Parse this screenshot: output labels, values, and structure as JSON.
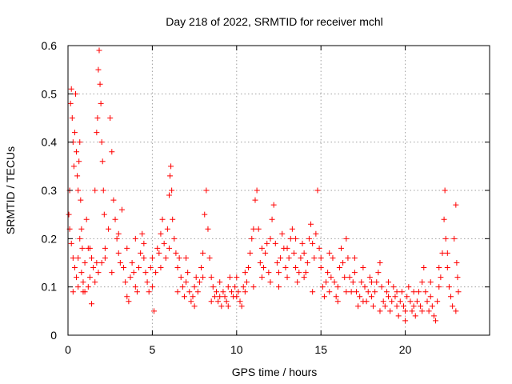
{
  "chart_data": {
    "type": "scatter",
    "title": "Day 218 of 2022, SRMTID for receiver mchl",
    "xlabel": "GPS time / hours",
    "ylabel": "SRMTID / TECUs",
    "xlim": [
      0,
      25
    ],
    "ylim": [
      0,
      0.6
    ],
    "xticks": [
      0,
      5,
      10,
      15,
      20
    ],
    "xtick_labels": [
      "0",
      "5",
      "10",
      "15",
      "20"
    ],
    "yticks": [
      0,
      0.1,
      0.2,
      0.3,
      0.4,
      0.5,
      0.6
    ],
    "ytick_labels": [
      "0",
      "0.1",
      "0.2",
      "0.3",
      "0.4",
      "0.5",
      "0.6"
    ],
    "grid": true,
    "marker": "plus",
    "color": "#ff0000",
    "series": [
      {
        "name": "mchl",
        "points": [
          [
            0.05,
            0.25
          ],
          [
            0.1,
            0.3
          ],
          [
            0.15,
            0.48
          ],
          [
            0.2,
            0.51
          ],
          [
            0.25,
            0.45
          ],
          [
            0.3,
            0.4
          ],
          [
            0.35,
            0.35
          ],
          [
            0.4,
            0.42
          ],
          [
            0.45,
            0.5
          ],
          [
            0.5,
            0.38
          ],
          [
            0.55,
            0.33
          ],
          [
            0.6,
            0.3
          ],
          [
            0.65,
            0.36
          ],
          [
            0.7,
            0.4
          ],
          [
            0.75,
            0.28
          ],
          [
            0.8,
            0.22
          ],
          [
            0.85,
            0.18
          ],
          [
            0.1,
            0.22
          ],
          [
            0.2,
            0.19
          ],
          [
            0.3,
            0.16
          ],
          [
            0.4,
            0.14
          ],
          [
            0.5,
            0.12
          ],
          [
            0.6,
            0.16
          ],
          [
            0.7,
            0.2
          ],
          [
            0.8,
            0.13
          ],
          [
            0.9,
            0.11
          ],
          [
            1.0,
            0.15
          ],
          [
            1.1,
            0.24
          ],
          [
            1.2,
            0.18
          ],
          [
            1.3,
            0.12
          ],
          [
            1.4,
            0.16
          ],
          [
            1.5,
            0.14
          ],
          [
            1.6,
            0.3
          ],
          [
            1.7,
            0.42
          ],
          [
            1.75,
            0.45
          ],
          [
            1.8,
            0.55
          ],
          [
            1.85,
            0.59
          ],
          [
            1.9,
            0.52
          ],
          [
            1.95,
            0.48
          ],
          [
            2.0,
            0.4
          ],
          [
            2.05,
            0.36
          ],
          [
            2.1,
            0.3
          ],
          [
            2.15,
            0.25
          ],
          [
            1.0,
            0.09
          ],
          [
            1.2,
            0.1
          ],
          [
            1.4,
            0.065
          ],
          [
            1.6,
            0.11
          ],
          [
            1.8,
            0.13
          ],
          [
            2.0,
            0.15
          ],
          [
            2.2,
            0.18
          ],
          [
            2.4,
            0.22
          ],
          [
            2.5,
            0.45
          ],
          [
            2.6,
            0.38
          ],
          [
            2.7,
            0.28
          ],
          [
            2.8,
            0.24
          ],
          [
            2.9,
            0.2
          ],
          [
            3.0,
            0.17
          ],
          [
            3.1,
            0.15
          ],
          [
            3.2,
            0.26
          ],
          [
            3.3,
            0.14
          ],
          [
            3.4,
            0.11
          ],
          [
            3.5,
            0.08
          ],
          [
            3.6,
            0.07
          ],
          [
            3.7,
            0.12
          ],
          [
            3.8,
            0.15
          ],
          [
            3.9,
            0.13
          ],
          [
            4.0,
            0.1
          ],
          [
            4.1,
            0.09
          ],
          [
            4.2,
            0.14
          ],
          [
            4.3,
            0.17
          ],
          [
            4.4,
            0.21
          ],
          [
            4.5,
            0.19
          ],
          [
            4.6,
            0.13
          ],
          [
            4.7,
            0.11
          ],
          [
            4.8,
            0.09
          ],
          [
            4.9,
            0.14
          ],
          [
            5.0,
            0.16
          ],
          [
            5.1,
            0.05
          ],
          [
            5.2,
            0.13
          ],
          [
            5.3,
            0.18
          ],
          [
            5.4,
            0.17
          ],
          [
            5.5,
            0.21
          ],
          [
            5.6,
            0.24
          ],
          [
            5.7,
            0.19
          ],
          [
            5.8,
            0.16
          ],
          [
            5.9,
            0.22
          ],
          [
            6.0,
            0.29
          ],
          [
            6.05,
            0.33
          ],
          [
            6.1,
            0.35
          ],
          [
            6.15,
            0.3
          ],
          [
            6.2,
            0.24
          ],
          [
            6.3,
            0.2
          ],
          [
            6.4,
            0.17
          ],
          [
            6.5,
            0.14
          ],
          [
            6.6,
            0.16
          ],
          [
            6.7,
            0.12
          ],
          [
            6.8,
            0.1
          ],
          [
            6.9,
            0.08
          ],
          [
            7.0,
            0.11
          ],
          [
            7.1,
            0.13
          ],
          [
            7.2,
            0.09
          ],
          [
            7.3,
            0.07
          ],
          [
            7.4,
            0.08
          ],
          [
            7.5,
            0.1
          ],
          [
            7.6,
            0.12
          ],
          [
            7.7,
            0.09
          ],
          [
            7.8,
            0.11
          ],
          [
            7.9,
            0.14
          ],
          [
            8.0,
            0.17
          ],
          [
            8.1,
            0.25
          ],
          [
            8.2,
            0.3
          ],
          [
            8.3,
            0.22
          ],
          [
            8.4,
            0.16
          ],
          [
            8.5,
            0.12
          ],
          [
            8.6,
            0.1
          ],
          [
            8.7,
            0.08
          ],
          [
            8.8,
            0.09
          ],
          [
            8.9,
            0.07
          ],
          [
            9.0,
            0.08
          ],
          [
            9.1,
            0.06
          ],
          [
            9.2,
            0.09
          ],
          [
            9.3,
            0.08
          ],
          [
            9.4,
            0.07
          ],
          [
            9.5,
            0.1
          ],
          [
            9.6,
            0.12
          ],
          [
            9.7,
            0.09
          ],
          [
            9.8,
            0.08
          ],
          [
            9.9,
            0.1
          ],
          [
            10.0,
            0.12
          ],
          [
            10.1,
            0.09
          ],
          [
            10.2,
            0.07
          ],
          [
            10.3,
            0.06
          ],
          [
            10.4,
            0.1
          ],
          [
            10.5,
            0.13
          ],
          [
            10.6,
            0.11
          ],
          [
            10.7,
            0.14
          ],
          [
            10.8,
            0.17
          ],
          [
            10.9,
            0.2
          ],
          [
            11.0,
            0.22
          ],
          [
            11.1,
            0.28
          ],
          [
            11.2,
            0.3
          ],
          [
            11.3,
            0.22
          ],
          [
            11.4,
            0.15
          ],
          [
            11.5,
            0.12
          ],
          [
            11.6,
            0.14
          ],
          [
            11.7,
            0.17
          ],
          [
            11.8,
            0.19
          ],
          [
            11.9,
            0.13
          ],
          [
            12.0,
            0.11
          ],
          [
            12.1,
            0.24
          ],
          [
            12.2,
            0.27
          ],
          [
            12.3,
            0.19
          ],
          [
            12.4,
            0.15
          ],
          [
            12.5,
            0.13
          ],
          [
            12.6,
            0.16
          ],
          [
            12.7,
            0.21
          ],
          [
            12.8,
            0.18
          ],
          [
            12.9,
            0.14
          ],
          [
            13.0,
            0.12
          ],
          [
            13.1,
            0.16
          ],
          [
            13.2,
            0.2
          ],
          [
            13.3,
            0.22
          ],
          [
            13.4,
            0.17
          ],
          [
            13.5,
            0.14
          ],
          [
            13.6,
            0.11
          ],
          [
            13.7,
            0.13
          ],
          [
            13.8,
            0.16
          ],
          [
            13.9,
            0.19
          ],
          [
            14.0,
            0.17
          ],
          [
            14.1,
            0.13
          ],
          [
            14.2,
            0.15
          ],
          [
            14.3,
            0.2
          ],
          [
            14.4,
            0.23
          ],
          [
            14.5,
            0.19
          ],
          [
            14.6,
            0.16
          ],
          [
            14.7,
            0.21
          ],
          [
            14.8,
            0.3
          ],
          [
            14.9,
            0.18
          ],
          [
            15.0,
            0.14
          ],
          [
            15.1,
            0.1
          ],
          [
            15.2,
            0.08
          ],
          [
            15.3,
            0.11
          ],
          [
            15.4,
            0.13
          ],
          [
            15.5,
            0.09
          ],
          [
            15.6,
            0.12
          ],
          [
            15.7,
            0.16
          ],
          [
            15.8,
            0.11
          ],
          [
            15.9,
            0.08
          ],
          [
            16.0,
            0.1
          ],
          [
            16.1,
            0.14
          ],
          [
            16.2,
            0.18
          ],
          [
            16.3,
            0.15
          ],
          [
            16.4,
            0.12
          ],
          [
            16.5,
            0.2
          ],
          [
            16.6,
            0.16
          ],
          [
            16.7,
            0.12
          ],
          [
            16.8,
            0.09
          ],
          [
            16.9,
            0.11
          ],
          [
            17.0,
            0.13
          ],
          [
            17.1,
            0.09
          ],
          [
            17.2,
            0.06
          ],
          [
            17.3,
            0.08
          ],
          [
            17.4,
            0.11
          ],
          [
            17.5,
            0.14
          ],
          [
            17.6,
            0.1
          ],
          [
            17.7,
            0.07
          ],
          [
            17.8,
            0.09
          ],
          [
            17.9,
            0.12
          ],
          [
            18.0,
            0.08
          ],
          [
            18.1,
            0.06
          ],
          [
            18.2,
            0.09
          ],
          [
            18.3,
            0.11
          ],
          [
            18.4,
            0.13
          ],
          [
            18.5,
            0.15
          ],
          [
            18.6,
            0.1
          ],
          [
            18.7,
            0.07
          ],
          [
            18.8,
            0.06
          ],
          [
            18.9,
            0.09
          ],
          [
            19.0,
            0.08
          ],
          [
            19.1,
            0.05
          ],
          [
            19.2,
            0.07
          ],
          [
            19.3,
            0.1
          ],
          [
            19.4,
            0.08
          ],
          [
            19.5,
            0.06
          ],
          [
            19.6,
            0.04
          ],
          [
            19.7,
            0.07
          ],
          [
            19.8,
            0.09
          ],
          [
            19.9,
            0.06
          ],
          [
            20.0,
            0.05
          ],
          [
            20.1,
            0.08
          ],
          [
            20.2,
            0.1
          ],
          [
            20.3,
            0.07
          ],
          [
            20.4,
            0.05
          ],
          [
            20.5,
            0.06
          ],
          [
            20.6,
            0.04
          ],
          [
            20.7,
            0.07
          ],
          [
            20.8,
            0.09
          ],
          [
            20.9,
            0.06
          ],
          [
            21.0,
            0.11
          ],
          [
            21.1,
            0.14
          ],
          [
            21.2,
            0.09
          ],
          [
            21.3,
            0.07
          ],
          [
            21.4,
            0.05
          ],
          [
            21.5,
            0.08
          ],
          [
            21.6,
            0.06
          ],
          [
            21.7,
            0.04
          ],
          [
            21.8,
            0.03
          ],
          [
            21.9,
            0.07
          ],
          [
            22.0,
            0.1
          ],
          [
            22.1,
            0.12
          ],
          [
            22.2,
            0.17
          ],
          [
            22.3,
            0.24
          ],
          [
            22.35,
            0.3
          ],
          [
            22.4,
            0.2
          ],
          [
            22.5,
            0.14
          ],
          [
            22.6,
            0.1
          ],
          [
            22.7,
            0.08
          ],
          [
            22.8,
            0.06
          ],
          [
            22.9,
            0.2
          ],
          [
            23.0,
            0.27
          ],
          [
            23.05,
            0.15
          ],
          [
            23.1,
            0.12
          ],
          [
            23.15,
            0.09
          ],
          [
            0.3,
            0.09
          ],
          [
            0.6,
            0.1
          ],
          [
            0.9,
            0.09
          ],
          [
            1.3,
            0.18
          ],
          [
            1.7,
            0.15
          ],
          [
            2.2,
            0.16
          ],
          [
            2.6,
            0.13
          ],
          [
            3.0,
            0.21
          ],
          [
            3.5,
            0.18
          ],
          [
            4.0,
            0.2
          ],
          [
            4.5,
            0.16
          ],
          [
            5.0,
            0.1
          ],
          [
            5.5,
            0.14
          ],
          [
            6.0,
            0.18
          ],
          [
            6.5,
            0.09
          ],
          [
            7.0,
            0.16
          ],
          [
            7.5,
            0.06
          ],
          [
            8.0,
            0.12
          ],
          [
            8.5,
            0.07
          ],
          [
            9.0,
            0.11
          ],
          [
            9.5,
            0.06
          ],
          [
            10.0,
            0.08
          ],
          [
            10.5,
            0.09
          ],
          [
            11.0,
            0.1
          ],
          [
            11.5,
            0.18
          ],
          [
            12.0,
            0.2
          ],
          [
            12.5,
            0.1
          ],
          [
            13.0,
            0.18
          ],
          [
            13.5,
            0.2
          ],
          [
            14.0,
            0.12
          ],
          [
            14.5,
            0.09
          ],
          [
            15.0,
            0.16
          ],
          [
            15.5,
            0.17
          ],
          [
            16.0,
            0.07
          ],
          [
            16.5,
            0.09
          ],
          [
            17.0,
            0.16
          ],
          [
            17.5,
            0.07
          ],
          [
            18.0,
            0.11
          ],
          [
            18.5,
            0.05
          ],
          [
            19.0,
            0.11
          ],
          [
            19.5,
            0.09
          ],
          [
            20.0,
            0.03
          ],
          [
            20.5,
            0.09
          ],
          [
            21.0,
            0.05
          ],
          [
            21.5,
            0.11
          ],
          [
            22.0,
            0.14
          ],
          [
            22.5,
            0.17
          ],
          [
            23.0,
            0.05
          ]
        ]
      }
    ]
  }
}
